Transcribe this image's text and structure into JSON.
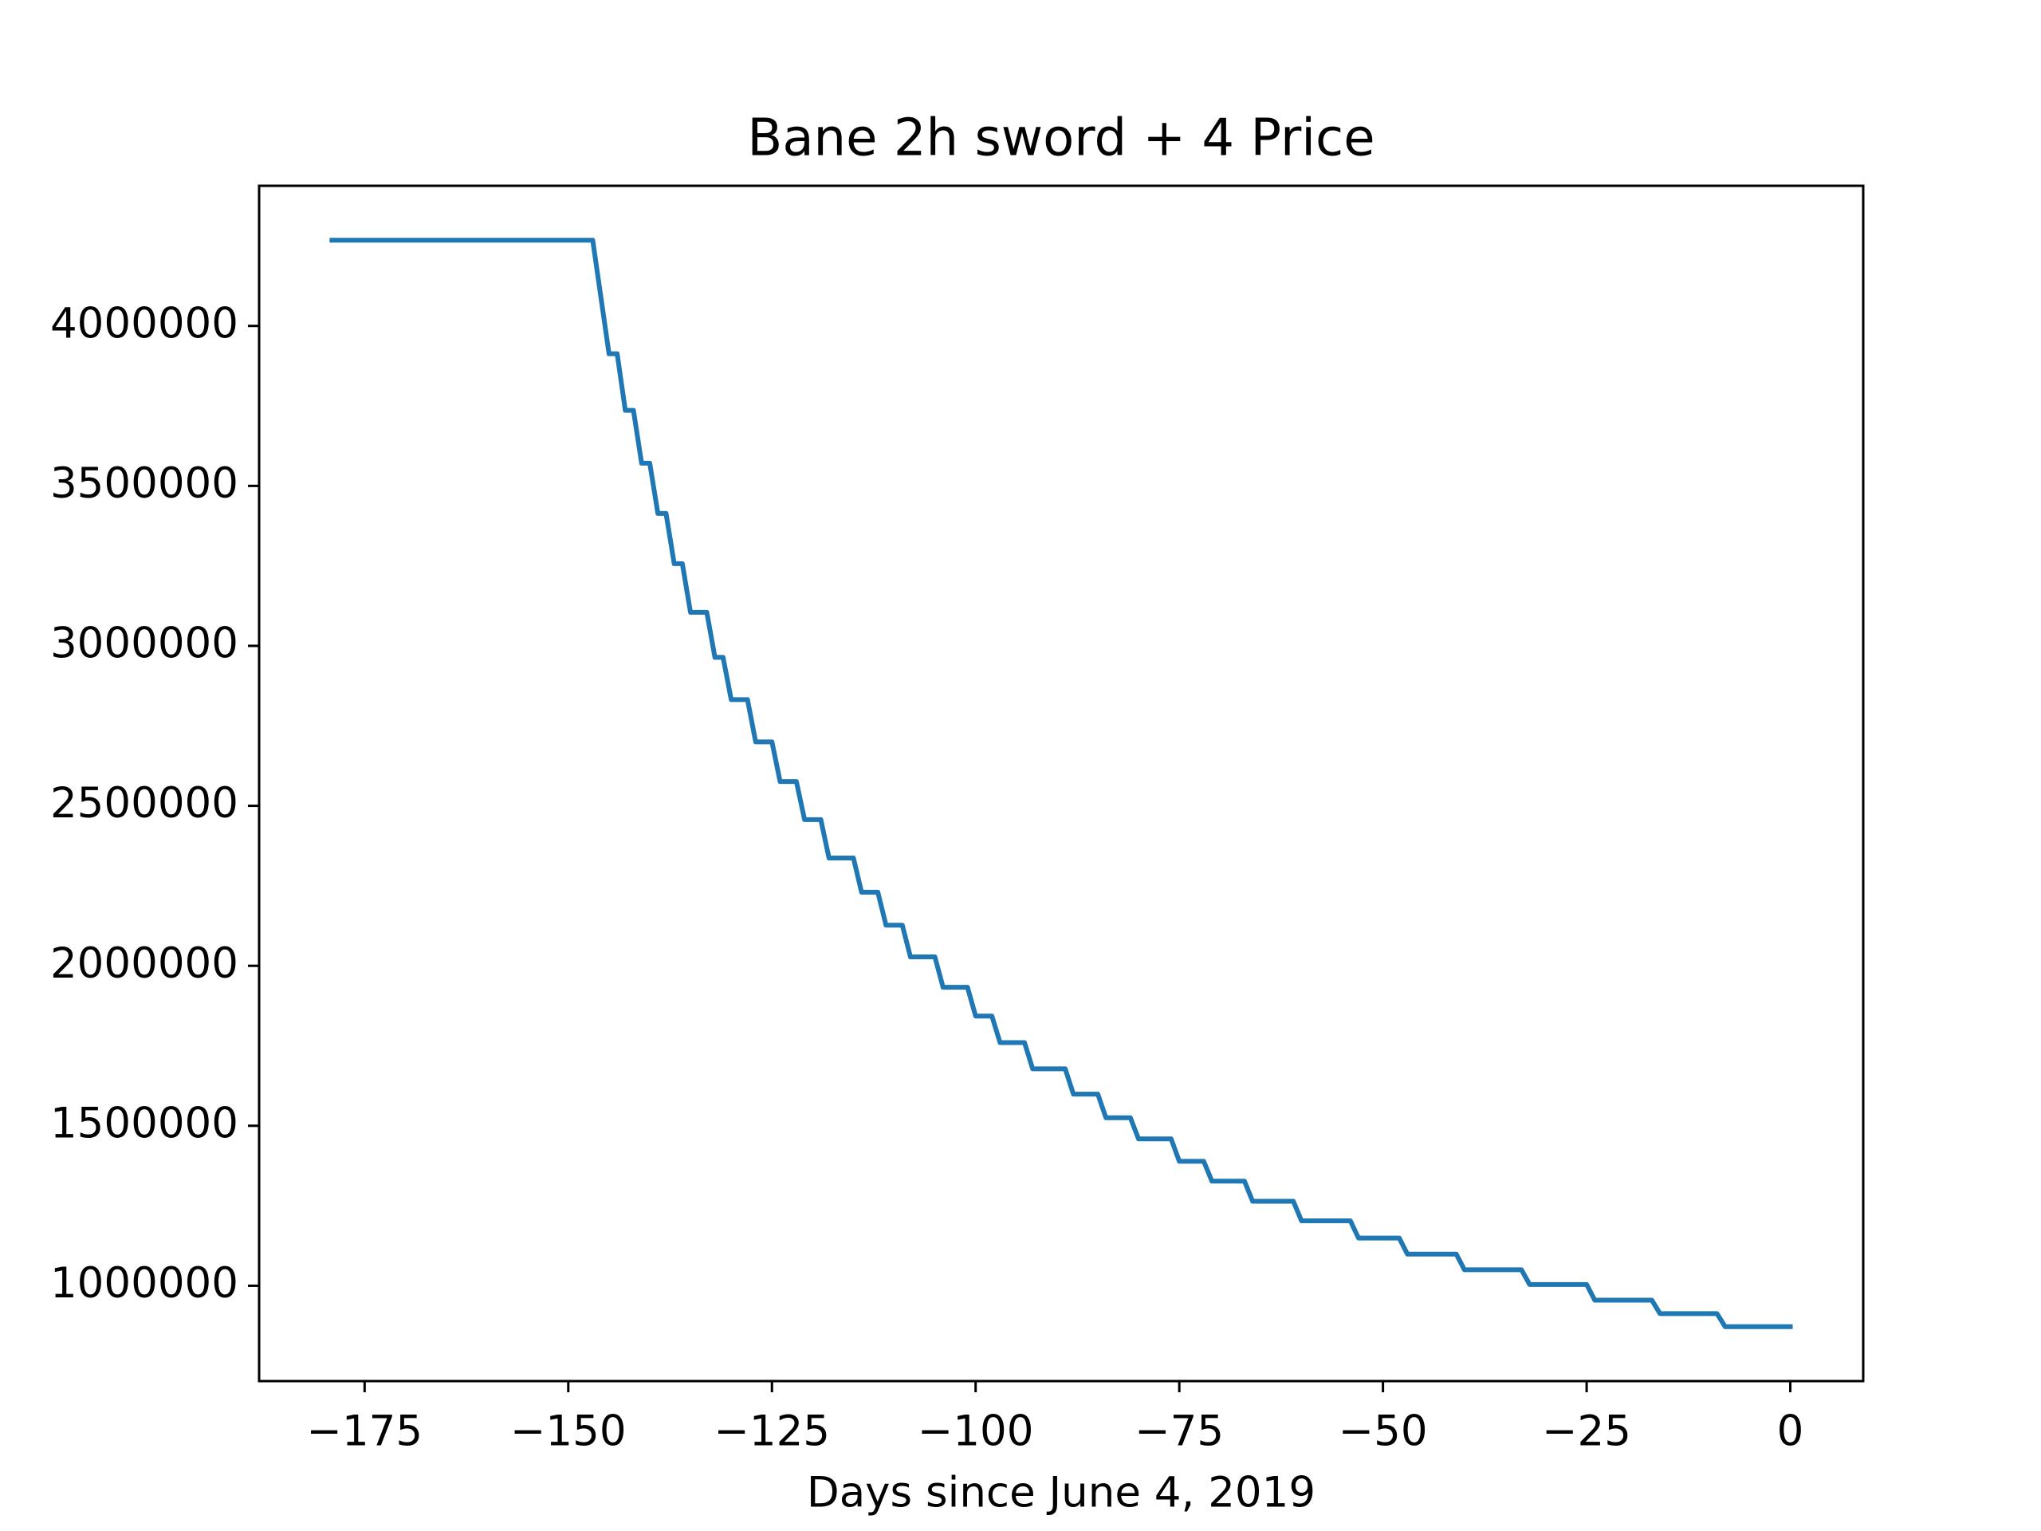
{
  "chart_data": {
    "type": "line",
    "title": "Bane 2h sword + 4 Price",
    "xlabel": "Days since June 4, 2019",
    "x": [
      -179,
      -147,
      -145,
      -144,
      -143,
      -142,
      -141,
      -140,
      -139,
      -138,
      -137,
      -136,
      -135,
      -133,
      -132,
      -131,
      -130,
      -128,
      -127,
      -125,
      -124,
      -122,
      -121,
      -119,
      -118,
      -115,
      -114,
      -112,
      -111,
      -109,
      -108,
      -105,
      -104,
      -101,
      -100,
      -98,
      -97,
      -94,
      -93,
      -89,
      -88,
      -85,
      -84,
      -81,
      -80,
      -76,
      -75,
      -72,
      -71,
      -67,
      -66,
      -61,
      -60,
      -54,
      -53,
      -48,
      -47,
      -41,
      -40,
      -33,
      -32,
      -25,
      -24,
      -17,
      -16,
      -9,
      -8,
      0
    ],
    "series": [
      {
        "name": "Price",
        "color": "#1f77b4",
        "values": [
          4268000,
          4268000,
          3913000,
          3913000,
          3736000,
          3736000,
          3571000,
          3571000,
          3414000,
          3414000,
          3257000,
          3257000,
          3105000,
          3105000,
          2964000,
          2964000,
          2832000,
          2832000,
          2700000,
          2700000,
          2576000,
          2576000,
          2457000,
          2457000,
          2337000,
          2337000,
          2230000,
          2230000,
          2127000,
          2127000,
          2028000,
          2028000,
          1933000,
          1933000,
          1843000,
          1843000,
          1760000,
          1760000,
          1678000,
          1678000,
          1599000,
          1599000,
          1525000,
          1525000,
          1459000,
          1459000,
          1389000,
          1389000,
          1327000,
          1327000,
          1264000,
          1264000,
          1203000,
          1203000,
          1149000,
          1149000,
          1099000,
          1099000,
          1050000,
          1050000,
          1004000,
          1004000,
          955000,
          955000,
          913000,
          913000,
          872000,
          872000
        ]
      }
    ],
    "xlim": [
      -187.95,
      8.95
    ],
    "xticks": [
      {
        "value": -175,
        "label": "−175"
      },
      {
        "value": -150,
        "label": "−150"
      },
      {
        "value": -125,
        "label": "−125"
      },
      {
        "value": -100,
        "label": "−100"
      },
      {
        "value": -75,
        "label": "−75"
      },
      {
        "value": -50,
        "label": "−50"
      },
      {
        "value": -25,
        "label": "−25"
      },
      0
    ],
    "ylim": [
      702000,
      4438000
    ],
    "yticks": [
      1000000,
      1500000,
      2000000,
      2500000,
      3000000,
      3500000,
      4000000
    ],
    "grid": false
  }
}
